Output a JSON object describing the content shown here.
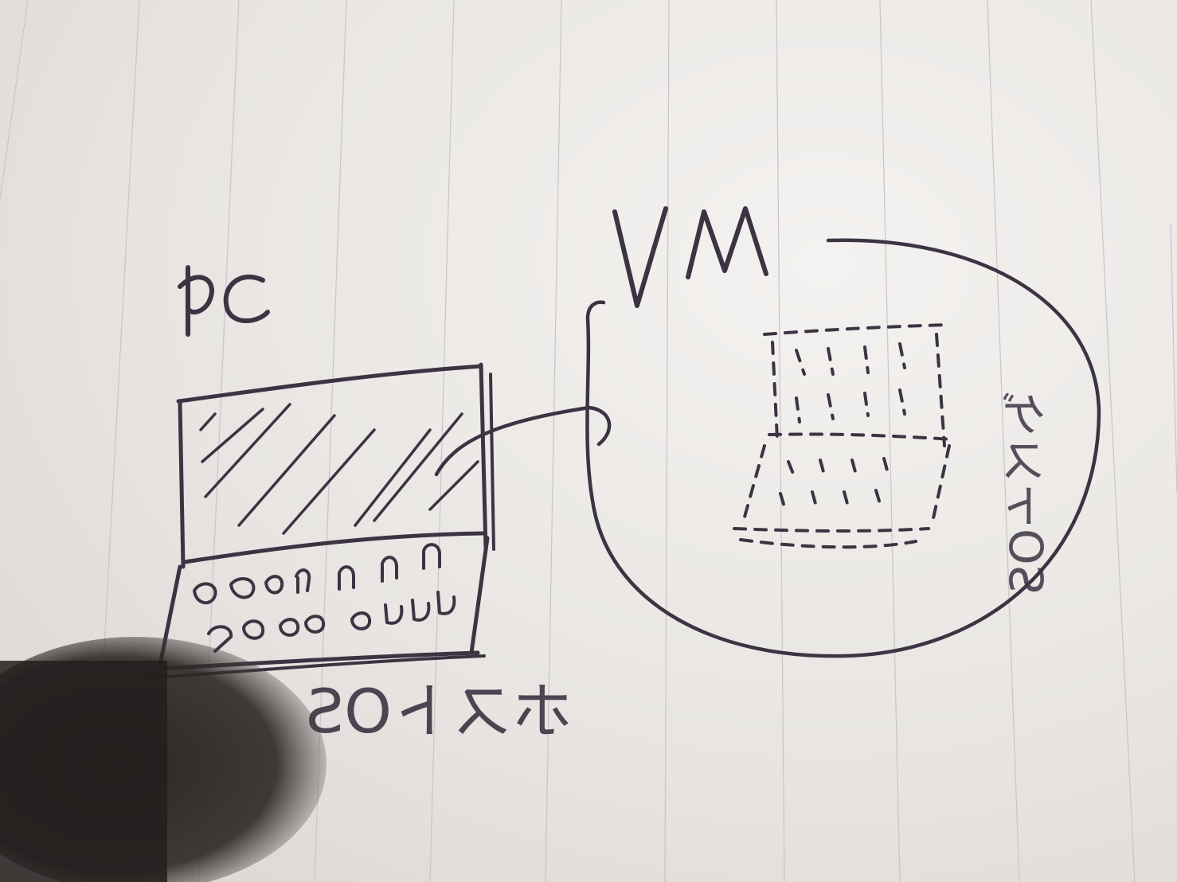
{
  "labels": {
    "pc": "PC",
    "vm": "VM",
    "host_os": "ホストOS",
    "guest_os": "ゲストOS"
  },
  "colors": {
    "paper": "#eeebe8",
    "ruled_line": "#c9c4cc",
    "ink": "#3b3443",
    "shadow": "#2a2522"
  }
}
